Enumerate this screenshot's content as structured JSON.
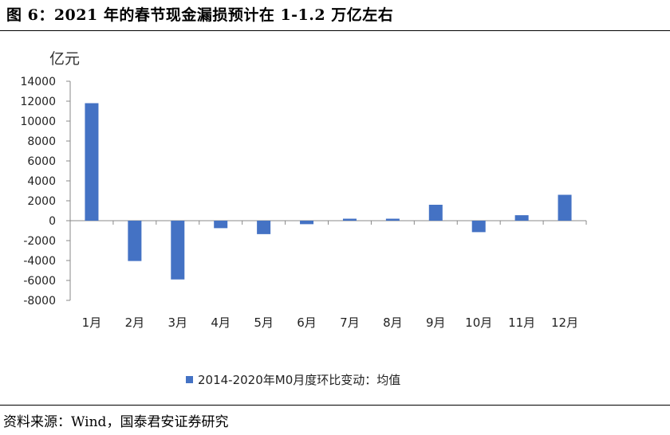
{
  "figure_title": "图 6：2021 年的春节现金漏损预计在 1-1.2 万亿左右",
  "source_note": "资料来源：Wind，国泰君安证券研究",
  "chart_data": {
    "type": "bar",
    "title": "",
    "ylabel": "亿元",
    "xlabel": "",
    "categories": [
      "1月",
      "2月",
      "3月",
      "4月",
      "5月",
      "6月",
      "7月",
      "8月",
      "9月",
      "10月",
      "11月",
      "12月"
    ],
    "series": [
      {
        "name": "2014-2020年M0月度环比变动：均值",
        "values": [
          11800,
          -4050,
          -5900,
          -750,
          -1350,
          -350,
          200,
          200,
          1600,
          -1150,
          550,
          2600
        ]
      }
    ],
    "ylim": [
      -8000,
      14000
    ],
    "yticks": [
      14000,
      12000,
      10000,
      8000,
      6000,
      4000,
      2000,
      0,
      -2000,
      -4000,
      -6000,
      -8000
    ],
    "ytick_labels": [
      "14000",
      "12000",
      "10000",
      "8000",
      "6000",
      "4000",
      "2000",
      "0",
      "-2000",
      "-4000",
      "-6000",
      "-8000"
    ],
    "grid": false,
    "legend_position": "bottom",
    "bar_color": "#4472C4"
  }
}
